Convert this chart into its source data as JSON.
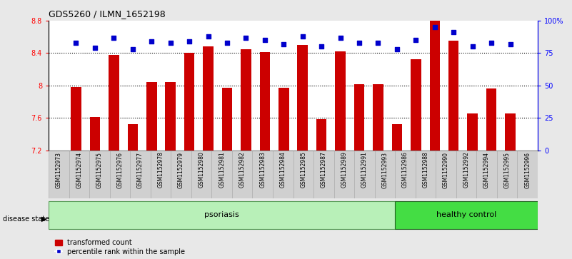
{
  "title": "GDS5260 / ILMN_1652198",
  "samples": [
    "GSM1152973",
    "GSM1152974",
    "GSM1152975",
    "GSM1152976",
    "GSM1152977",
    "GSM1152978",
    "GSM1152979",
    "GSM1152980",
    "GSM1152981",
    "GSM1152982",
    "GSM1152983",
    "GSM1152984",
    "GSM1152985",
    "GSM1152987",
    "GSM1152989",
    "GSM1152991",
    "GSM1152993",
    "GSM1152986",
    "GSM1152988",
    "GSM1152990",
    "GSM1152992",
    "GSM1152994",
    "GSM1152995",
    "GSM1152996"
  ],
  "bar_values": [
    7.98,
    7.61,
    8.38,
    7.52,
    8.04,
    8.04,
    8.4,
    8.48,
    7.97,
    8.45,
    8.41,
    7.97,
    8.5,
    7.58,
    8.42,
    8.02,
    8.02,
    7.52,
    8.32,
    8.8,
    8.55,
    7.65,
    7.96,
    7.65
  ],
  "dot_values": [
    83,
    79,
    87,
    78,
    84,
    83,
    84,
    88,
    83,
    87,
    85,
    82,
    88,
    80,
    87,
    83,
    83,
    78,
    85,
    95,
    91,
    80,
    83,
    82
  ],
  "ymin": 7.2,
  "ymax": 8.8,
  "yticks": [
    7.2,
    7.6,
    8.0,
    8.4,
    8.8
  ],
  "ytick_labels": [
    "7.2",
    "7.6",
    "8",
    "8.4",
    "8.8"
  ],
  "right_yticks": [
    0,
    25,
    50,
    75,
    100
  ],
  "right_ytick_labels": [
    "0",
    "25",
    "50",
    "75",
    "100%"
  ],
  "bar_color": "#cc0000",
  "dot_color": "#0000cc",
  "psoriasis_count": 17,
  "healthy_count": 7,
  "psoriasis_label": "psoriasis",
  "healthy_label": "healthy control",
  "disease_state_label": "disease state",
  "legend_bar_label": "transformed count",
  "legend_dot_label": "percentile rank within the sample",
  "bg_color": "#e8e8e8",
  "plot_bg_color": "#ffffff",
  "group_color_psoriasis": "#b8f0b8",
  "group_color_healthy": "#44dd44",
  "xlabel_bg_color": "#d0d0d0"
}
